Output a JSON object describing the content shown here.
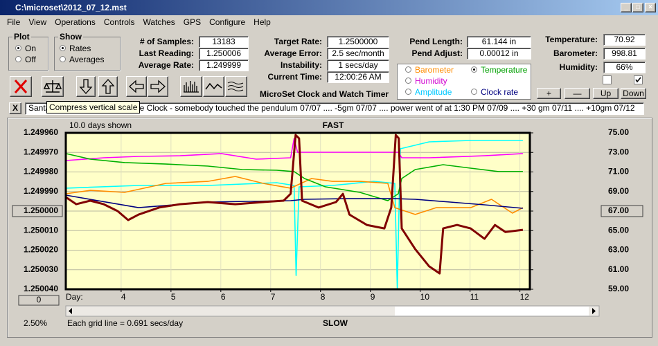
{
  "window": {
    "title": "C:\\microset\\2012_07_12.mst"
  },
  "menu": [
    "File",
    "View",
    "Operations",
    "Controls",
    "Watches",
    "GPS",
    "Configure",
    "Help"
  ],
  "plot_group": {
    "title": "Plot",
    "options": [
      "On",
      "Off"
    ],
    "selected_index": 0
  },
  "show_group": {
    "title": "Show",
    "options": [
      "Rates",
      "Averages"
    ],
    "selected_index": 0
  },
  "stats": [
    {
      "label": "# of Samples:",
      "value": "13183"
    },
    {
      "label": "Last Reading:",
      "value": "1.250006"
    },
    {
      "label": "Average Rate:",
      "value": "1.249999"
    }
  ],
  "rates": [
    {
      "label": "Target Rate:",
      "value": "1.2500000"
    },
    {
      "label": "Average Error:",
      "value": "2.5 sec/month"
    },
    {
      "label": "Instability:",
      "value": "1 secs/day"
    },
    {
      "label": "Current Time:",
      "value": "12:00:26 AM"
    }
  ],
  "pendulum": [
    {
      "label": "Pend Length:",
      "value": "61.144 in"
    },
    {
      "label": "Pend Adjust:",
      "value": "0.00012 in"
    }
  ],
  "environment": [
    {
      "label": "Temperature:",
      "value": "70.92"
    },
    {
      "label": "Barometer:",
      "value": "998.81"
    },
    {
      "label": "Humidity:",
      "value": "66%"
    }
  ],
  "checkboxes": [
    false,
    true
  ],
  "sensor_options": {
    "options": [
      "Barometer",
      "Temperature",
      "Humidity",
      "Amplitude",
      "Clock rate"
    ],
    "selected_index": 1
  },
  "scale_buttons": [
    "+",
    "—",
    "Up",
    "Down"
  ],
  "app_title": "MicroSet Clock and Watch Timer",
  "notes": {
    "close": "X",
    "start": "Santa",
    "rest": "use Clock  -  somebody touched the pendulum 07/07  ....  -5gm 07/07  ....  power went of at 1:30 PM 07/09 ....  +30 gm 07/11  ....  +10gm 07/12"
  },
  "tooltip": "Compress vertical scale",
  "chart_data": {
    "type": "line",
    "title": "FAST",
    "bottom_title": "SLOW",
    "days_shown": "10.0 days shown",
    "grid_note": "Each grid line = 0.691 secs/day",
    "x_label": "Day:",
    "percent": "2.50%",
    "zero_button": "0",
    "xlim": [
      2.89,
      12.2
    ],
    "xticks": [
      4,
      5,
      6,
      7,
      8,
      9,
      10,
      11,
      12
    ],
    "ylim": [
      1.24996,
      1.25004
    ],
    "yticks": [
      {
        "value": 1.24996,
        "label": "1.249960"
      },
      {
        "value": 1.24997,
        "label": "1.249970"
      },
      {
        "value": 1.24998,
        "label": "1.249980"
      },
      {
        "value": 1.24999,
        "label": "1.249990"
      },
      {
        "value": 1.25,
        "label": "1.250000"
      },
      {
        "value": 1.25001,
        "label": "1.250010"
      },
      {
        "value": 1.25002,
        "label": "1.250020"
      },
      {
        "value": 1.25003,
        "label": "1.250030"
      },
      {
        "value": 1.25004,
        "label": "1.250040"
      }
    ],
    "highlighted_ytick": 4,
    "y2lim": [
      75,
      59
    ],
    "y2ticks": [
      {
        "value": 75,
        "label": "75.00"
      },
      {
        "value": 73,
        "label": "73.00"
      },
      {
        "value": 71,
        "label": "71.00"
      },
      {
        "value": 69,
        "label": "69.00"
      },
      {
        "value": 67,
        "label": "67.00"
      },
      {
        "value": 65,
        "label": "65.00"
      },
      {
        "value": 63,
        "label": "63.00"
      },
      {
        "value": 61,
        "label": "61.00"
      },
      {
        "value": 59,
        "label": "59.00"
      }
    ],
    "highlighted_y2tick": 4,
    "grid": true,
    "series": [
      {
        "color": "#00ffff",
        "axis": "y2",
        "x": [
          2.89,
          4.35,
          5.74,
          7.12,
          7.47,
          7.51,
          7.57,
          8.24,
          9.07,
          9.49,
          9.54,
          9.6,
          10.18,
          11.01,
          12.06
        ],
        "values": [
          69.34,
          69.62,
          69.62,
          69.9,
          69.62,
          60.41,
          69.48,
          69.62,
          70.04,
          69.83,
          59.0,
          73.37,
          74.08,
          74.22,
          74.22
        ]
      },
      {
        "color": "#ff00ff",
        "axis": "y2",
        "x": [
          2.89,
          3.65,
          4.35,
          5.18,
          6.01,
          6.71,
          7.4,
          7.47,
          7.54,
          8.24,
          9.56,
          9.63,
          10.18,
          11.29,
          12.06
        ],
        "values": [
          72.17,
          72.45,
          72.59,
          72.66,
          72.88,
          72.31,
          72.45,
          74.43,
          73.02,
          73.02,
          73.02,
          72.45,
          72.45,
          72.66,
          72.88
        ]
      },
      {
        "color": "#ff8c00",
        "axis": "y2",
        "x": [
          2.89,
          3.38,
          4.07,
          4.9,
          5.74,
          6.29,
          6.85,
          7.4,
          7.82,
          8.24,
          8.79,
          9.35,
          9.49,
          9.9,
          10.32,
          11.01,
          11.43,
          11.85,
          12.06
        ],
        "values": [
          68.77,
          69.12,
          68.91,
          69.83,
          70.04,
          70.54,
          69.83,
          69.34,
          70.33,
          70.04,
          70.04,
          69.83,
          67.35,
          66.65,
          67.35,
          67.35,
          68.2,
          66.79,
          67.35
        ]
      },
      {
        "color": "#00b000",
        "axis": "y2",
        "x": [
          2.89,
          3.38,
          4.07,
          4.9,
          5.74,
          6.43,
          7.12,
          7.47,
          7.68,
          8.1,
          8.79,
          9.35,
          9.56,
          9.63,
          9.9,
          10.46,
          11.01,
          11.57,
          12.06
        ],
        "values": [
          72.88,
          72.31,
          71.96,
          71.81,
          71.6,
          71.25,
          71.18,
          71.04,
          70.33,
          69.48,
          68.91,
          68.06,
          68.77,
          70.33,
          71.25,
          71.74,
          71.39,
          71.04,
          71.04
        ]
      },
      {
        "color": "#000080",
        "axis": "y2",
        "x": [
          2.89,
          4.35,
          5.74,
          7.4,
          7.68,
          8.51,
          9.49,
          9.9,
          10.6,
          11.29,
          12.06
        ],
        "values": [
          68.63,
          67.35,
          67.92,
          68.06,
          68.2,
          68.27,
          68.27,
          68.2,
          67.92,
          67.64,
          67.28
        ]
      },
      {
        "color": "#800000",
        "axis": "y",
        "x": [
          2.89,
          3.1,
          3.38,
          3.65,
          3.93,
          4.14,
          4.35,
          4.76,
          5.18,
          5.74,
          6.29,
          6.85,
          7.26,
          7.4,
          7.5,
          7.57,
          7.63,
          7.96,
          8.31,
          8.45,
          8.58,
          8.93,
          9.28,
          9.42,
          9.51,
          9.57,
          9.63,
          9.9,
          10.18,
          10.39,
          10.46,
          10.74,
          11.01,
          11.29,
          11.5,
          11.71,
          12.06
        ],
        "values": [
          1.2499929,
          1.2499965,
          1.2499947,
          1.2499965,
          1.25,
          1.2500046,
          1.2500018,
          1.2499982,
          1.2499965,
          1.2499954,
          1.2499965,
          1.2499954,
          1.2499947,
          1.2499912,
          1.2499611,
          1.2499628,
          1.2499947,
          1.2499982,
          1.2499954,
          1.2499912,
          1.2500018,
          1.2500071,
          1.2500089,
          1.2499982,
          1.2499611,
          1.2499628,
          1.2500089,
          1.2500195,
          1.2500283,
          1.2500319,
          1.2500089,
          1.2500071,
          1.2500089,
          1.2500142,
          1.2500071,
          1.2500107,
          1.2500096
        ]
      }
    ]
  }
}
